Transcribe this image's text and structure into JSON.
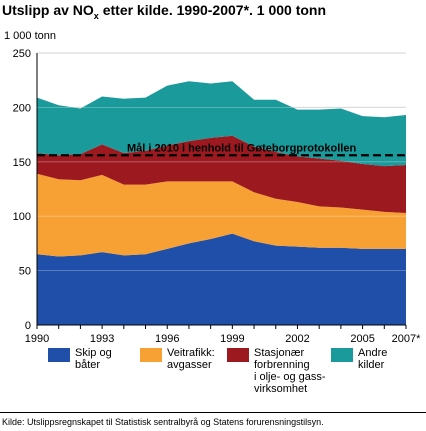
{
  "header": {
    "title_pre": "Utslipp av NO",
    "title_sub": "x",
    "title_post": " etter kilde. 1990-2007*. 1 000 tonn"
  },
  "source": "Kilde: Utslippsregnskapet til Statistisk sentralbyrå og Statens forurensningstilsyn.",
  "chart_data": {
    "type": "area",
    "stacked": true,
    "title": "Utslipp av NOx etter kilde. 1990-2007*. 1 000 tonn",
    "ylabel": "1 000 tonn",
    "xlabel": "",
    "x": [
      1990,
      1991,
      1992,
      1993,
      1994,
      1995,
      1996,
      1997,
      1998,
      1999,
      2000,
      2001,
      2002,
      2003,
      2004,
      2005,
      2006,
      2007
    ],
    "xlim": [
      1990,
      2007
    ],
    "ylim": [
      0,
      250
    ],
    "y_ticks": [
      0,
      50,
      100,
      150,
      200,
      250
    ],
    "x_tick_labels": [
      "1990",
      "1993",
      "1996",
      "1999",
      "2002",
      "2005",
      "2007*"
    ],
    "grid": "horizontal",
    "legend_position": "bottom",
    "series": [
      {
        "name": "Skip og båter",
        "color": "#1f4fa8",
        "values": [
          65,
          63,
          64,
          67,
          64,
          65,
          70,
          75,
          79,
          84,
          77,
          73,
          72,
          71,
          71,
          70,
          70,
          70
        ]
      },
      {
        "name": "Veitrafikk: avgasser",
        "color": "#f7a034",
        "values": [
          74,
          71,
          69,
          71,
          65,
          64,
          62,
          57,
          53,
          48,
          45,
          43,
          41,
          38,
          37,
          36,
          34,
          33
        ]
      },
      {
        "name": "Stasjonær forbrenning i olje- og gass-virksomhet",
        "color": "#9c1a1f",
        "values": [
          19,
          22,
          24,
          28,
          29,
          31,
          33,
          37,
          40,
          42,
          42,
          43,
          42,
          44,
          43,
          42,
          42,
          44
        ]
      },
      {
        "name": "Andre kilder",
        "color": "#1a9a9a",
        "values": [
          51,
          46,
          42,
          44,
          50,
          49,
          55,
          55,
          50,
          50,
          43,
          48,
          43,
          45,
          48,
          44,
          45,
          46
        ]
      }
    ],
    "reference_line": {
      "value": 156,
      "label": "Mål i 2010 i henhold til Gøteborgprotokollen"
    }
  },
  "legend": [
    {
      "label": "Skip og\nbåter",
      "color": "#1f4fa8"
    },
    {
      "label": "Veitrafikk:\navgasser",
      "color": "#f7a034"
    },
    {
      "label": "Stasjonær\nforbrenning\ni olje- og gass-\nvirksomhet",
      "color": "#9c1a1f"
    },
    {
      "label": "Andre\nkilder",
      "color": "#1a9a9a"
    }
  ]
}
